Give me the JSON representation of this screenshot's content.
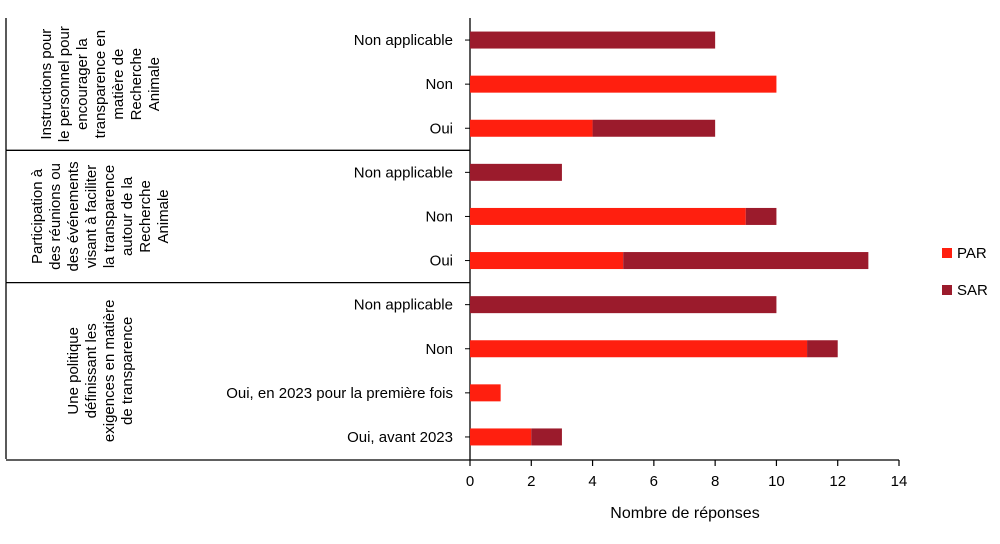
{
  "chart_data": {
    "type": "bar",
    "orientation": "horizontal",
    "stacked": true,
    "xlabel": "Nombre de réponses",
    "xlim": [
      0,
      14
    ],
    "xticks": [
      0,
      2,
      4,
      6,
      8,
      10,
      12,
      14
    ],
    "grid": false,
    "legend_position": "right",
    "colors": {
      "PAR": "#ff1f0f",
      "SAR": "#9b1b2c"
    },
    "groups": [
      {
        "label": "Instructions pour le personnel pour encourager la transparence en matière de Recherche Animale",
        "label_lines": [
          "Instructions pour",
          "le personnel pour",
          "encourager la",
          "transparence en",
          "matière de",
          "Recherche",
          "Animale"
        ],
        "categories": [
          "Non applicable",
          "Non",
          "Oui"
        ],
        "series": [
          {
            "name": "PAR",
            "values": [
              0,
              10,
              4
            ]
          },
          {
            "name": "SAR",
            "values": [
              8,
              0,
              4
            ]
          }
        ]
      },
      {
        "label": "Participation à des réunions ou des événements visant à faciliter la transparence autour de la Recherche Animale",
        "label_lines": [
          "Participation à",
          "des réunions ou",
          "des événements",
          "visant à faciliter",
          "la transparence",
          "autour de la",
          "Recherche",
          "Animale"
        ],
        "categories": [
          "Non applicable",
          "Non",
          "Oui"
        ],
        "series": [
          {
            "name": "PAR",
            "values": [
              0,
              9,
              5
            ]
          },
          {
            "name": "SAR",
            "values": [
              3,
              1,
              8
            ]
          }
        ]
      },
      {
        "label": "Une politique définissant les exigences en matière de transparence",
        "label_lines": [
          "Une politique",
          "définissant les",
          "exigences en matière",
          "de transparence"
        ],
        "categories": [
          "Non applicable",
          "Non",
          "Oui, en 2023 pour la première fois",
          "Oui, avant 2023"
        ],
        "series": [
          {
            "name": "PAR",
            "values": [
              0,
              11,
              1,
              2
            ]
          },
          {
            "name": "SAR",
            "values": [
              10,
              1,
              0,
              1
            ]
          }
        ]
      }
    ]
  }
}
